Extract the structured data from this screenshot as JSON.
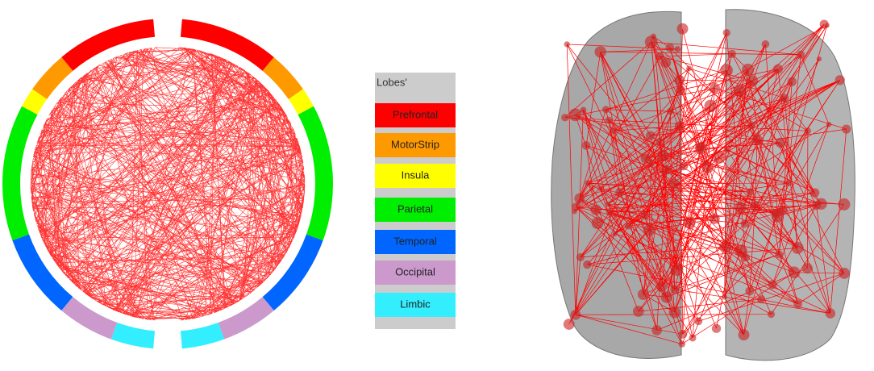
{
  "legend": {
    "title": "Lobes'",
    "items": [
      {
        "label": "Prefrontal",
        "color": "#ff0000"
      },
      {
        "label": "MotorStrip",
        "color": "#ff9900"
      },
      {
        "label": "Insula",
        "color": "#ffff00"
      },
      {
        "label": "Parietal",
        "color": "#00ee00"
      },
      {
        "label": "Temporal",
        "color": "#0066ff"
      },
      {
        "label": "Occipital",
        "color": "#cc99cc"
      },
      {
        "label": "Limbic",
        "color": "#33eeff"
      }
    ]
  }
}
